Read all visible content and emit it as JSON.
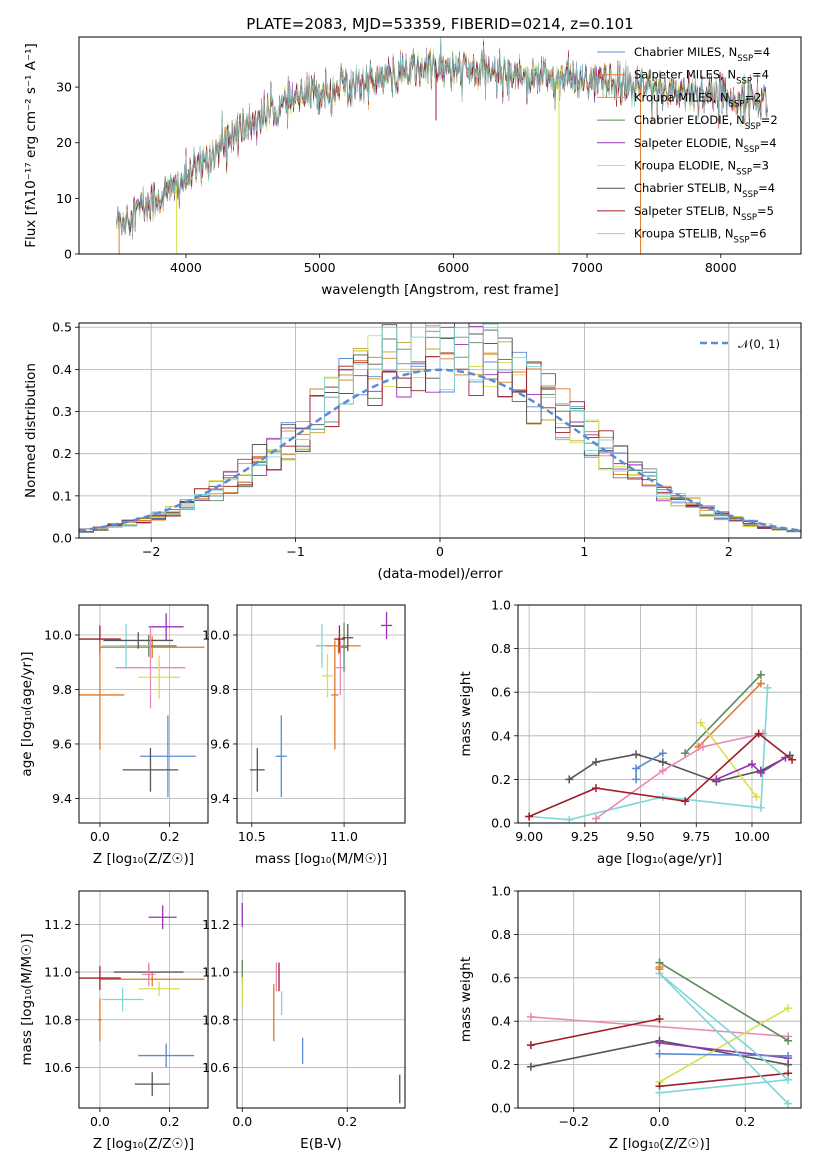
{
  "figure": {
    "title": "PLATE=2083, MJD=53359, FIBERID=0214, z=0.101"
  },
  "chart_data": [
    {
      "id": "spectrum",
      "type": "line",
      "xlabel": "wavelength [Angstrom, rest frame]",
      "ylabel": "Flux [fλ10⁻¹⁷ erg cm⁻² s⁻¹ A⁻¹]",
      "xlim": [
        3200,
        8600
      ],
      "ylim": [
        0,
        39
      ],
      "xticks": [
        "4000",
        "5000",
        "6000",
        "7000",
        "8000"
      ],
      "xtick_values": [
        4000,
        5000,
        6000,
        7000,
        8000
      ],
      "yticks": [
        "0",
        "10",
        "20",
        "30"
      ],
      "ytick_values": [
        0,
        10,
        20,
        30
      ],
      "grid": false,
      "legend_position": "top-right",
      "continuum": [
        [
          3480,
          5.5
        ],
        [
          3600,
          7.5
        ],
        [
          3800,
          10
        ],
        [
          4000,
          13.5
        ],
        [
          4200,
          18
        ],
        [
          4400,
          22.5
        ],
        [
          4600,
          25
        ],
        [
          4800,
          27.5
        ],
        [
          5000,
          29
        ],
        [
          5200,
          30.5
        ],
        [
          5400,
          31
        ],
        [
          5600,
          32.5
        ],
        [
          5800,
          33.5
        ],
        [
          6000,
          33.2
        ],
        [
          6200,
          32.8
        ],
        [
          6400,
          32.5
        ],
        [
          6600,
          32
        ],
        [
          6800,
          31.5
        ],
        [
          7000,
          31
        ],
        [
          7200,
          30.5
        ],
        [
          7400,
          30
        ],
        [
          7600,
          29.5
        ],
        [
          7800,
          29
        ],
        [
          8000,
          28.5
        ],
        [
          8200,
          28
        ],
        [
          8350,
          27.5
        ]
      ],
      "series": [
        {
          "name": "Chabrier MILES, N",
          "sub": "SSP",
          "suffix": "=4",
          "color": "#5b8bd6"
        },
        {
          "name": "Salpeter MILES, N",
          "sub": "SSP",
          "suffix": "=4",
          "color": "#e07a2a"
        },
        {
          "name": "Kroupa MILES, N",
          "sub": "SSP",
          "suffix": "=2",
          "color": "#c9a227"
        },
        {
          "name": "Chabrier ELODIE, N",
          "sub": "SSP",
          "suffix": "=2",
          "color": "#5a8a5a"
        },
        {
          "name": "Salpeter ELODIE, N",
          "sub": "SSP",
          "suffix": "=4",
          "color": "#9a30b8"
        },
        {
          "name": "Kroupa ELODIE, N",
          "sub": "SSP",
          "suffix": "=3",
          "color": "#d6e050"
        },
        {
          "name": "Chabrier STELIB, N",
          "sub": "SSP",
          "suffix": "=4",
          "color": "#555555"
        },
        {
          "name": "Salpeter STELIB, N",
          "sub": "SSP",
          "suffix": "=5",
          "color": "#a01e28"
        },
        {
          "name": "Kroupa STELIB, N",
          "sub": "SSP",
          "suffix": "=6",
          "color": "#7fd6d6"
        }
      ]
    },
    {
      "id": "residuals",
      "type": "histogram",
      "xlabel": "(data-model)/error",
      "ylabel": "Normed distribution",
      "xlim": [
        -2.5,
        2.5
      ],
      "ylim": [
        0,
        0.51
      ],
      "xticks": [
        "−2",
        "−1",
        "0",
        "1",
        "2"
      ],
      "xtick_values": [
        -2,
        -1,
        0,
        1,
        2
      ],
      "yticks": [
        "0.0",
        "0.1",
        "0.2",
        "0.3",
        "0.4",
        "0.5"
      ],
      "ytick_values": [
        0,
        0.1,
        0.2,
        0.3,
        0.4,
        0.5
      ],
      "grid": true,
      "bin_width": 0.1,
      "legend": {
        "label": "𝒩(0, 1)",
        "position": "top-right",
        "color": "#5b8bd6"
      },
      "colors": [
        "#5b8bd6",
        "#e07a2a",
        "#c9a227",
        "#5a8a5a",
        "#9a30b8",
        "#d6e050",
        "#555555",
        "#a01e28",
        "#7fd6d6"
      ]
    },
    {
      "id": "age-vs-Z",
      "type": "errorbar",
      "xlabel": "Z [log₁₀(Z/Z☉)]",
      "ylabel": "age  [log₁₀(age/yr)]",
      "xlim": [
        -0.06,
        0.31
      ],
      "ylim": [
        9.31,
        10.11
      ],
      "xticks": [
        "0.0",
        "0.2"
      ],
      "xtick_values": [
        0,
        0.2
      ],
      "yticks": [
        "9.4",
        "9.6",
        "9.8",
        "10.0"
      ],
      "ytick_values": [
        9.4,
        9.6,
        9.8,
        10.0
      ],
      "grid": true,
      "points": [
        {
          "x": 0.19,
          "y": 10.03,
          "xerr": 0.05,
          "yerr": 0.05,
          "color": "#9a30b8"
        },
        {
          "x": 0.15,
          "y": 9.955,
          "xerr": 0.15,
          "yerr": 0.04,
          "color": "#e07a2a"
        },
        {
          "x": 0.14,
          "y": 9.96,
          "xerr": 0.08,
          "yerr": 0.04,
          "color": "#5a8a5a"
        },
        {
          "x": 0.075,
          "y": 9.96,
          "xerr": 0.07,
          "yerr": 0.08,
          "color": "#7fd6d6"
        },
        {
          "x": 0.11,
          "y": 9.98,
          "xerr": 0.1,
          "yerr": 0.03,
          "color": "#555555"
        },
        {
          "x": 0.0,
          "y": 9.985,
          "xerr": 0.06,
          "yerr": 0.05,
          "color": "#a01e28"
        },
        {
          "x": 0.0,
          "y": 9.78,
          "xerr": 0.07,
          "yerr": 0.2,
          "color": "#e07a2a"
        },
        {
          "x": 0.145,
          "y": 9.88,
          "xerr": 0.1,
          "yerr": 0.15,
          "color": "#e88ab8"
        },
        {
          "x": 0.17,
          "y": 9.845,
          "xerr": 0.06,
          "yerr": 0.08,
          "color": "#d6e050"
        },
        {
          "x": 0.195,
          "y": 9.555,
          "xerr": 0.08,
          "yerr": 0.15,
          "color": "#5b8bd6"
        },
        {
          "x": 0.145,
          "y": 9.505,
          "xerr": 0.08,
          "yerr": 0.08,
          "color": "#555555"
        }
      ]
    },
    {
      "id": "age-vs-mass",
      "type": "errorbar",
      "xlabel": "mass [log₁₀(M/M☉)]",
      "ylabel": "",
      "xlim": [
        10.42,
        11.33
      ],
      "ylim": [
        9.31,
        10.11
      ],
      "xticks": [
        "10.5",
        "11.0"
      ],
      "xtick_values": [
        10.5,
        11.0
      ],
      "yticks": [
        "9.4",
        "9.6",
        "9.8",
        "10.0"
      ],
      "ytick_values": [
        9.4,
        9.6,
        9.8,
        10.0
      ],
      "grid": true,
      "points": [
        {
          "x": 11.23,
          "y": 10.035,
          "xerr": 0.03,
          "yerr": 0.05,
          "color": "#9a30b8"
        },
        {
          "x": 10.97,
          "y": 9.96,
          "xerr": 0.12,
          "yerr": 0.03,
          "color": "#e07a2a"
        },
        {
          "x": 11.0,
          "y": 9.955,
          "xerr": 0.02,
          "yerr": 0.09,
          "color": "#5a8a5a"
        },
        {
          "x": 10.88,
          "y": 9.96,
          "xerr": 0.02,
          "yerr": 0.08,
          "color": "#7fd6d6"
        },
        {
          "x": 11.02,
          "y": 9.99,
          "xerr": 0.03,
          "yerr": 0.05,
          "color": "#555555"
        },
        {
          "x": 10.975,
          "y": 9.985,
          "xerr": 0.03,
          "yerr": 0.05,
          "color": "#a01e28"
        },
        {
          "x": 10.95,
          "y": 9.78,
          "xerr": 0.02,
          "yerr": 0.2,
          "color": "#e07a2a"
        },
        {
          "x": 10.98,
          "y": 9.88,
          "xerr": 0.03,
          "yerr": 0.1,
          "color": "#e88ab8"
        },
        {
          "x": 10.91,
          "y": 9.85,
          "xerr": 0.03,
          "yerr": 0.08,
          "color": "#d6e050"
        },
        {
          "x": 10.66,
          "y": 9.555,
          "xerr": 0.03,
          "yerr": 0.15,
          "color": "#5b8bd6"
        },
        {
          "x": 10.53,
          "y": 9.505,
          "xerr": 0.04,
          "yerr": 0.08,
          "color": "#555555"
        }
      ]
    },
    {
      "id": "massweight-vs-age",
      "type": "line",
      "xlabel": "age  [log₁₀(age/yr)]",
      "ylabel": "mass weight",
      "xlim": [
        8.95,
        10.22
      ],
      "ylim": [
        0,
        1
      ],
      "xticks": [
        "9.00",
        "9.25",
        "9.50",
        "9.75",
        "10.00"
      ],
      "xtick_values": [
        9.0,
        9.25,
        9.5,
        9.75,
        10.0
      ],
      "yticks": [
        "0.0",
        "0.2",
        "0.4",
        "0.6",
        "0.8",
        "1.0"
      ],
      "ytick_values": [
        0,
        0.2,
        0.4,
        0.6,
        0.8,
        1.0
      ],
      "grid": true,
      "series": [
        {
          "color": "#7fd6d6",
          "points": [
            [
              9.0,
              0.03
            ],
            [
              9.18,
              0.015
            ],
            [
              9.6,
              0.12
            ],
            [
              10.04,
              0.07
            ],
            [
              10.07,
              0.62
            ]
          ]
        },
        {
          "color": "#555555",
          "points": [
            [
              9.18,
              0.2
            ],
            [
              9.3,
              0.28
            ],
            [
              9.48,
              0.315
            ],
            [
              9.6,
              0.28
            ],
            [
              9.84,
              0.19
            ],
            [
              10.04,
              0.24
            ],
            [
              10.17,
              0.31
            ]
          ]
        },
        {
          "color": "#5a8a5a",
          "points": [
            [
              9.7,
              0.32
            ],
            [
              10.04,
              0.68
            ]
          ]
        },
        {
          "color": "#e07a2a",
          "points": [
            [
              9.76,
              0.35
            ],
            [
              10.04,
              0.64
            ]
          ]
        },
        {
          "color": "#d6e050",
          "points": [
            [
              9.77,
              0.46
            ],
            [
              10.02,
              0.12
            ]
          ]
        },
        {
          "color": "#e88ab8",
          "points": [
            [
              9.3,
              0.02
            ],
            [
              9.6,
              0.24
            ],
            [
              9.78,
              0.35
            ],
            [
              10.05,
              0.41
            ]
          ]
        },
        {
          "color": "#a01e28",
          "points": [
            [
              9.0,
              0.03
            ],
            [
              9.3,
              0.16
            ],
            [
              9.7,
              0.1
            ],
            [
              10.03,
              0.41
            ],
            [
              10.18,
              0.29
            ]
          ]
        },
        {
          "color": "#9a30b8",
          "points": [
            [
              9.84,
              0.2
            ],
            [
              10.0,
              0.27
            ],
            [
              10.04,
              0.23
            ],
            [
              10.15,
              0.3
            ]
          ]
        },
        {
          "color": "#5b8bd6",
          "points": [
            [
              9.48,
              0.2
            ],
            [
              9.48,
              0.25
            ],
            [
              9.6,
              0.32
            ]
          ]
        }
      ]
    },
    {
      "id": "mass-vs-Z",
      "type": "errorbar",
      "xlabel": "Z [log₁₀(Z/Z☉)]",
      "ylabel": "mass [log₁₀(M/M☉)]",
      "xlim": [
        -0.06,
        0.31
      ],
      "ylim": [
        10.43,
        11.34
      ],
      "xticks": [
        "0.0",
        "0.2"
      ],
      "xtick_values": [
        0,
        0.2
      ],
      "yticks": [
        "10.6",
        "10.8",
        "11.0",
        "11.2"
      ],
      "ytick_values": [
        10.6,
        10.8,
        11.0,
        11.2
      ],
      "grid": true,
      "points": [
        {
          "x": 0.18,
          "y": 11.23,
          "xerr": 0.04,
          "yerr": 0.05,
          "color": "#9a30b8"
        },
        {
          "x": 0.15,
          "y": 10.97,
          "xerr": 0.15,
          "yerr": 0.03,
          "color": "#e07a2a"
        },
        {
          "x": 0.0,
          "y": 10.975,
          "xerr": 0.06,
          "yerr": 0.05,
          "color": "#a01e28"
        },
        {
          "x": 0.14,
          "y": 11.0,
          "xerr": 0.1,
          "yerr": 0.03,
          "color": "#555555"
        },
        {
          "x": 0.14,
          "y": 10.99,
          "xerr": 0.02,
          "yerr": 0.05,
          "color": "#e88ab8"
        },
        {
          "x": 0.17,
          "y": 10.93,
          "xerr": 0.06,
          "yerr": 0.03,
          "color": "#d6e050"
        },
        {
          "x": 0.065,
          "y": 10.885,
          "xerr": 0.06,
          "yerr": 0.05,
          "color": "#7fd6d6"
        },
        {
          "x": 0.0,
          "y": 10.8,
          "xerr": 0.005,
          "yerr": 0.09,
          "color": "#e07a2a"
        },
        {
          "x": 0.19,
          "y": 10.65,
          "xerr": 0.08,
          "yerr": 0.05,
          "color": "#5b8bd6"
        },
        {
          "x": 0.15,
          "y": 10.53,
          "xerr": 0.05,
          "yerr": 0.05,
          "color": "#555555"
        }
      ]
    },
    {
      "id": "mass-vs-EBV",
      "type": "errorbar",
      "xlabel": "E(B-V)",
      "ylabel": "",
      "xlim": [
        -0.01,
        0.31
      ],
      "ylim": [
        10.43,
        11.34
      ],
      "xticks": [
        "0.0",
        "0.2"
      ],
      "xtick_values": [
        0,
        0.2
      ],
      "yticks": [
        "10.6",
        "10.8",
        "11.0",
        "11.2"
      ],
      "ytick_values": [
        10.6,
        10.8,
        11.0,
        11.2
      ],
      "grid": true,
      "points": [
        {
          "x": 0.0,
          "y": 11.24,
          "xerr": 0,
          "yerr": 0.05,
          "color": "#9a30b8"
        },
        {
          "x": 0.0,
          "y": 11.0,
          "xerr": 0,
          "yerr": 0.05,
          "color": "#5a8a5a"
        },
        {
          "x": 0.0,
          "y": 10.92,
          "xerr": 0,
          "yerr": 0.06,
          "color": "#d6e050"
        },
        {
          "x": 0.065,
          "y": 10.98,
          "xerr": 0,
          "yerr": 0.06,
          "color": "#e88ab8"
        },
        {
          "x": 0.07,
          "y": 10.98,
          "xerr": 0,
          "yerr": 0.06,
          "color": "#a01e28"
        },
        {
          "x": 0.075,
          "y": 10.87,
          "xerr": 0,
          "yerr": 0.05,
          "color": "#7fd6d6"
        },
        {
          "x": 0.06,
          "y": 10.83,
          "xerr": 0,
          "yerr": 0.12,
          "color": "#e07a2a"
        },
        {
          "x": 0.115,
          "y": 10.67,
          "xerr": 0,
          "yerr": 0.055,
          "color": "#5b8bd6"
        },
        {
          "x": 0.3,
          "y": 10.51,
          "xerr": 0,
          "yerr": 0.06,
          "color": "#555555"
        }
      ]
    },
    {
      "id": "massweight-vs-Z",
      "type": "line",
      "xlabel": "Z [log₁₀(Z/Z☉)]",
      "ylabel": "mass weight",
      "xlim": [
        -0.33,
        0.33
      ],
      "ylim": [
        0,
        1
      ],
      "xticks": [
        "−0.2",
        "0.0",
        "0.2"
      ],
      "xtick_values": [
        -0.2,
        0,
        0.2
      ],
      "yticks": [
        "0.0",
        "0.2",
        "0.4",
        "0.6",
        "0.8",
        "1.0"
      ],
      "ytick_values": [
        0,
        0.2,
        0.4,
        0.6,
        0.8,
        1.0
      ],
      "grid": true,
      "series": [
        {
          "color": "#e88ab8",
          "points": [
            [
              -0.3,
              0.42
            ],
            [
              0.3,
              0.33
            ]
          ]
        },
        {
          "color": "#a01e28",
          "points": [
            [
              -0.3,
              0.29
            ],
            [
              0.0,
              0.41
            ]
          ]
        },
        {
          "color": "#555555",
          "points": [
            [
              -0.3,
              0.19
            ],
            [
              0.0,
              0.31
            ],
            [
              0.3,
              0.2
            ]
          ]
        },
        {
          "color": "#5a8a5a",
          "points": [
            [
              0.0,
              0.67
            ],
            [
              0.3,
              0.31
            ]
          ]
        },
        {
          "color": "#d6e050",
          "points": [
            [
              0.0,
              0.12
            ],
            [
              0.3,
              0.46
            ]
          ]
        },
        {
          "color": "#9a30b8",
          "points": [
            [
              0.0,
              0.3
            ],
            [
              0.3,
              0.23
            ]
          ]
        },
        {
          "color": "#5b8bd6",
          "points": [
            [
              0.0,
              0.25
            ],
            [
              0.3,
              0.24
            ]
          ]
        },
        {
          "color": "#a01e28",
          "points": [
            [
              0.0,
              0.1
            ],
            [
              0.3,
              0.16
            ]
          ]
        },
        {
          "color": "#7fd6d6",
          "points": [
            [
              0.0,
              0.07
            ],
            [
              0.3,
              0.13
            ],
            [
              0.0,
              0.62
            ],
            [
              0.3,
              0.02
            ]
          ]
        },
        {
          "color": "#e07a2a",
          "points": [
            [
              0.0,
              0.64
            ],
            [
              0.0,
              0.65
            ]
          ]
        }
      ]
    }
  ]
}
